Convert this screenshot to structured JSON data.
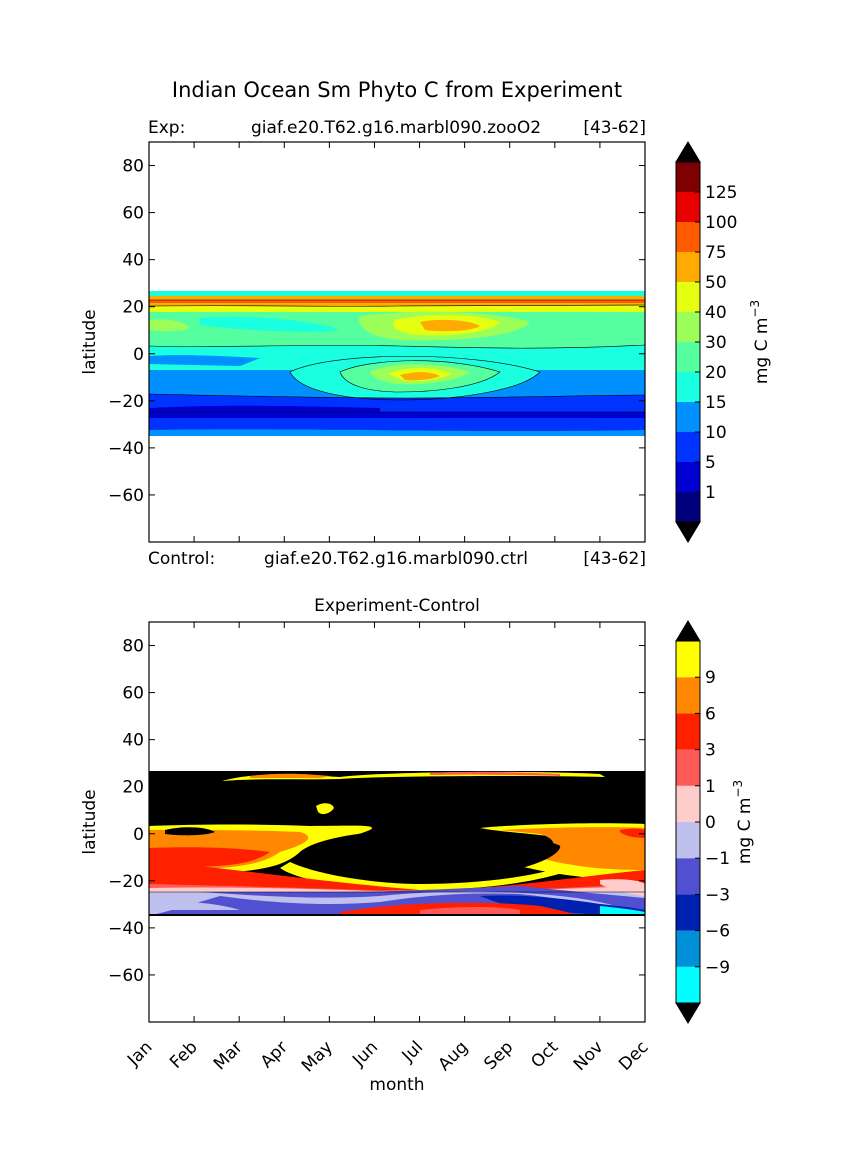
{
  "figure": {
    "title": "Indian Ocean Sm Phyto C from Experiment"
  },
  "chart_data": [
    {
      "type": "heatmap",
      "panel": "experiment",
      "header_left_label": "Exp:",
      "header_case": "giaf.e20.T62.g16.marbl090.zooO2",
      "header_years": "[43-62]",
      "xlabel": "",
      "ylabel": "latitude",
      "xlim": [
        0,
        11
      ],
      "ylim": [
        -80,
        90
      ],
      "yticks": [
        80,
        60,
        40,
        20,
        0,
        -20,
        -40,
        -60
      ],
      "colorbar": {
        "label_main": "mg C m",
        "label_sup": "−3",
        "levels": [
          "1",
          "5",
          "10",
          "15",
          "20",
          "30",
          "40",
          "50",
          "75",
          "100",
          "125"
        ],
        "colors": [
          "#00007f",
          "#0000d0",
          "#0033ff",
          "#0090ff",
          "#19ffdf",
          "#55ffa0",
          "#9cff59",
          "#e5ff10",
          "#ffaa00",
          "#ff5a00",
          "#e80000",
          "#7f0000"
        ],
        "extend_under": "#000000",
        "extend_over": "#000000"
      },
      "data_lat_range": [
        -34,
        27
      ],
      "bands": [
        {
          "lat_top": 27,
          "lat_bottom": 25,
          "value_class": "20-30"
        },
        {
          "lat_top": 25,
          "lat_bottom": 21,
          "value_class": "50-75"
        },
        {
          "lat_top": 21,
          "lat_bottom": 5,
          "value_class": "30-40"
        },
        {
          "lat_top": 5,
          "lat_bottom": -5,
          "value_class": "20-30"
        },
        {
          "lat_top": -5,
          "lat_bottom": -14,
          "value_class": "15-20"
        },
        {
          "lat_top": -14,
          "lat_bottom": -20,
          "value_class": "15-20"
        },
        {
          "lat_top": -20,
          "lat_bottom": -25,
          "value_class": "10-15"
        },
        {
          "lat_top": -25,
          "lat_bottom": -30,
          "value_class": "5-10"
        },
        {
          "lat_top": -30,
          "lat_bottom": -34,
          "value_class": "10-15"
        }
      ]
    },
    {
      "type": "heatmap",
      "panel": "difference",
      "title": "Experiment-Control",
      "header_left_label": "Control:",
      "header_case": "giaf.e20.T62.g16.marbl090.ctrl",
      "header_years": "[43-62]",
      "xlabel": "month",
      "ylabel": "latitude",
      "xlim": [
        0,
        11
      ],
      "ylim": [
        -80,
        90
      ],
      "yticks": [
        80,
        60,
        40,
        20,
        0,
        -20,
        -40,
        -60
      ],
      "xticks": [
        "Jan",
        "Feb",
        "Mar",
        "Apr",
        "May",
        "Jun",
        "Jul",
        "Aug",
        "Sep",
        "Oct",
        "Nov",
        "Dec"
      ],
      "colorbar": {
        "label_main": "mg C m",
        "label_sup": "−3",
        "levels": [
          "-9",
          "-6",
          "-3",
          "-1",
          "0",
          "1",
          "3",
          "6",
          "9"
        ],
        "colors": [
          "#00ffff",
          "#0090d8",
          "#0020b0",
          "#5050d0",
          "#c0c0ee",
          "#ffcccc",
          "#ff5a5a",
          "#ff2000",
          "#ff8800",
          "#ffff00"
        ],
        "extend_under": "#000000",
        "extend_over": "#000000"
      },
      "data_lat_range": [
        -34,
        27
      ],
      "bands": [
        {
          "lat_top": 27,
          "lat_bottom": 26,
          "value_class": ">9"
        },
        {
          "lat_top": 26,
          "lat_bottom": 3,
          "value_class": ">9 (over-range, black)"
        },
        {
          "lat_top": 3,
          "lat_bottom": -5,
          "value_class": "6-9"
        },
        {
          "lat_top": -5,
          "lat_bottom": -13,
          "value_class": "6-9"
        },
        {
          "lat_top": -13,
          "lat_bottom": -22,
          "value_class": "3-6"
        },
        {
          "lat_top": -22,
          "lat_bottom": -24,
          "value_class": "0-1"
        },
        {
          "lat_top": -24,
          "lat_bottom": -28,
          "value_class": "-3 to -1"
        },
        {
          "lat_top": -28,
          "lat_bottom": -32,
          "value_class": "-1 to 0"
        },
        {
          "lat_top": -32,
          "lat_bottom": -34,
          "value_class": "3-6"
        }
      ]
    }
  ]
}
